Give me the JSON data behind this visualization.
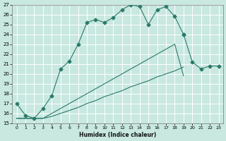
{
  "xlabel": "Humidex (Indice chaleur)",
  "bg_color": "#c8e8e0",
  "grid_color": "#ffffff",
  "line_color": "#2a7a6a",
  "xlim": [
    -0.5,
    23.5
  ],
  "ylim": [
    15,
    27
  ],
  "xticks": [
    0,
    1,
    2,
    3,
    4,
    5,
    6,
    7,
    8,
    9,
    10,
    11,
    12,
    13,
    14,
    15,
    16,
    17,
    18,
    19,
    20,
    21,
    22,
    23
  ],
  "yticks": [
    15,
    16,
    17,
    18,
    19,
    20,
    21,
    22,
    23,
    24,
    25,
    26,
    27
  ],
  "series": [
    {
      "x": [
        0,
        1,
        2,
        3,
        4,
        5,
        6,
        7,
        8,
        9,
        10,
        11,
        12,
        13,
        14,
        15,
        16,
        17,
        18,
        19
      ],
      "y": [
        17.0,
        15.8,
        15.5,
        16.5,
        17.8,
        20.5,
        21.3,
        23.0,
        25.2,
        25.5,
        25.2,
        25.7,
        26.5,
        27.0,
        26.8,
        25.0,
        26.5,
        26.8,
        25.8,
        24.0
      ],
      "marker": "D",
      "markersize": 2.5
    },
    {
      "x": [
        19,
        20,
        21,
        22,
        23
      ],
      "y": [
        24.0,
        21.2,
        20.5,
        20.8,
        20.8
      ],
      "marker": "D",
      "markersize": 2.5
    },
    {
      "x": [
        0,
        1,
        2,
        3,
        4,
        5,
        6,
        7,
        8,
        9,
        10,
        11,
        12,
        13,
        14,
        15,
        16,
        17,
        18,
        19,
        20,
        21,
        22,
        23
      ],
      "y": [
        15.5,
        15.5,
        15.5,
        15.5,
        15.7,
        16.0,
        16.3,
        16.6,
        17.0,
        17.3,
        17.7,
        18.0,
        18.3,
        18.7,
        19.0,
        19.3,
        19.7,
        20.0,
        20.3,
        20.7,
        null,
        null,
        null,
        null
      ],
      "marker": null,
      "markersize": 0
    },
    {
      "x": [
        0,
        1,
        2,
        3,
        4,
        5,
        6,
        7,
        8,
        9,
        10,
        11,
        12,
        13,
        14,
        15,
        16,
        17,
        18,
        19,
        20,
        21,
        22,
        23
      ],
      "y": [
        15.5,
        15.5,
        15.5,
        15.5,
        16.0,
        16.5,
        17.0,
        17.5,
        18.0,
        18.5,
        19.0,
        19.5,
        20.0,
        20.5,
        21.0,
        21.5,
        22.0,
        22.5,
        23.0,
        19.8,
        null,
        null,
        null,
        null
      ],
      "marker": null,
      "markersize": 0
    }
  ]
}
